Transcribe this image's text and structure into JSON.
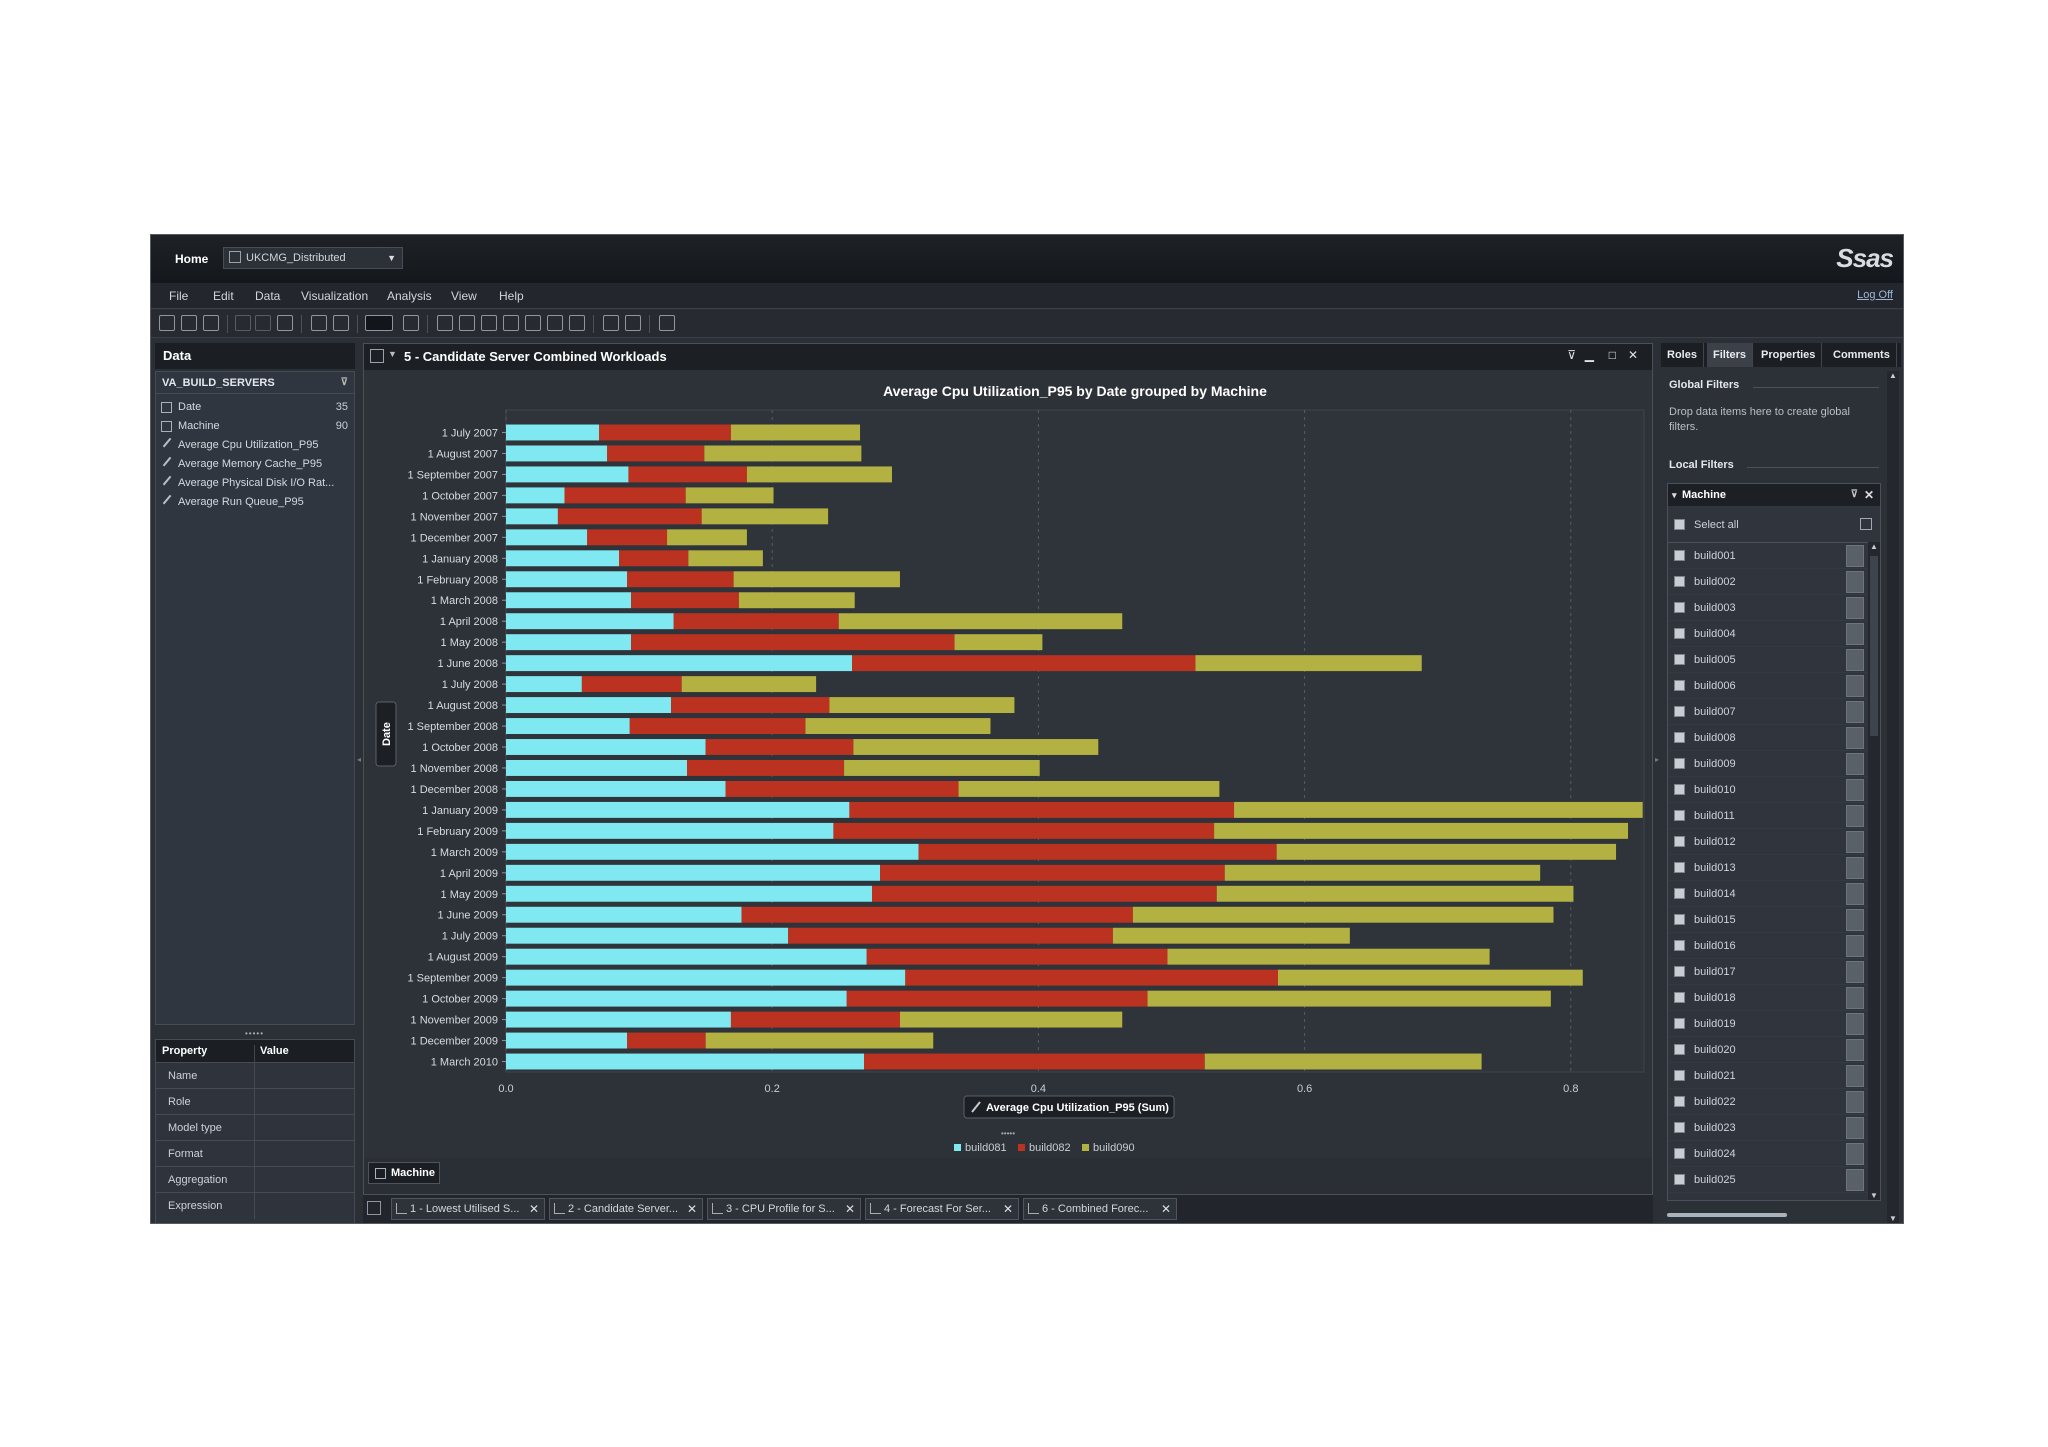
{
  "topbar": {
    "home_label": "Home",
    "report_name": "UKCMG_Distributed",
    "logo_text": "Ssas",
    "logoff_label": "Log Off"
  },
  "menu": [
    "File",
    "Edit",
    "Data",
    "Visualization",
    "Analysis",
    "View",
    "Help"
  ],
  "data_pane": {
    "title": "Data",
    "datasource": "VA_BUILD_SERVERS",
    "items": [
      {
        "label": "Date",
        "count": "35",
        "kind": "category"
      },
      {
        "label": "Machine",
        "count": "90",
        "kind": "category"
      },
      {
        "label": "Average Cpu Utilization_P95",
        "count": "",
        "kind": "measure"
      },
      {
        "label": "Average Memory Cache_P95",
        "count": "",
        "kind": "measure"
      },
      {
        "label": "Average Physical Disk I/O Rat...",
        "count": "",
        "kind": "measure"
      },
      {
        "label": "Average Run Queue_P95",
        "count": "",
        "kind": "measure"
      }
    ],
    "grip": "•••••",
    "properties": {
      "header_property": "Property",
      "header_value": "Value",
      "rows": [
        "Name",
        "Role",
        "Model type",
        "Format",
        "Aggregation",
        "Expression"
      ]
    }
  },
  "visualization": {
    "title": "5 - Candidate Server  Combined Workloads",
    "machine_tag": "Machine",
    "measure_tag": "Average Cpu Utilization_P95 (Sum)",
    "y_axis_tag": "Date"
  },
  "chart_data": {
    "type": "bar",
    "orientation": "horizontal",
    "stacked": true,
    "title": "Average Cpu Utilization_P95 by Date grouped by Machine",
    "xlabel": "Average Cpu Utilization_P95 (Sum)",
    "ylabel": "Date",
    "xlim": [
      0,
      0.855
    ],
    "xticks": [
      "0.0",
      "0.2",
      "0.4",
      "0.6",
      "0.8"
    ],
    "xtick_values": [
      0,
      0.2,
      0.4,
      0.6,
      0.8
    ],
    "grid": true,
    "legend_position": "bottom",
    "categories": [
      "1 July 2007",
      "1 August 2007",
      "1 September 2007",
      "1 October 2007",
      "1 November 2007",
      "1 December 2007",
      "1 January 2008",
      "1 February 2008",
      "1 March 2008",
      "1 April 2008",
      "1 May 2008",
      "1 June 2008",
      "1 July 2008",
      "1 August 2008",
      "1 September 2008",
      "1 October 2008",
      "1 November 2008",
      "1 December 2008",
      "1 January 2009",
      "1 February 2009",
      "1 March 2009",
      "1 April 2009",
      "1 May 2009",
      "1 June 2009",
      "1 July 2009",
      "1 August 2009",
      "1 September 2009",
      "1 October 2009",
      "1 November 2009",
      "1 December 2009",
      "1 March 2010"
    ],
    "series": [
      {
        "name": "build081",
        "color": "#7fe8f0",
        "values": [
          0.07,
          0.076,
          0.092,
          0.044,
          0.039,
          0.061,
          0.085,
          0.091,
          0.094,
          0.126,
          0.094,
          0.26,
          0.057,
          0.124,
          0.093,
          0.15,
          0.136,
          0.165,
          0.258,
          0.246,
          0.31,
          0.281,
          0.275,
          0.177,
          0.212,
          0.271,
          0.3,
          0.256,
          0.169,
          0.091,
          0.269
        ]
      },
      {
        "name": "build082",
        "color": "#bb3320",
        "values": [
          0.099,
          0.073,
          0.089,
          0.091,
          0.108,
          0.06,
          0.052,
          0.08,
          0.081,
          0.124,
          0.243,
          0.258,
          0.075,
          0.119,
          0.132,
          0.111,
          0.118,
          0.175,
          0.289,
          0.286,
          0.269,
          0.259,
          0.259,
          0.294,
          0.244,
          0.226,
          0.28,
          0.226,
          0.127,
          0.059,
          0.256
        ]
      },
      {
        "name": "build090",
        "color": "#b2b141",
        "values": [
          0.097,
          0.118,
          0.109,
          0.066,
          0.095,
          0.06,
          0.056,
          0.125,
          0.087,
          0.213,
          0.066,
          0.17,
          0.101,
          0.139,
          0.139,
          0.184,
          0.147,
          0.196,
          0.307,
          0.311,
          0.255,
          0.237,
          0.268,
          0.316,
          0.178,
          0.242,
          0.229,
          0.303,
          0.167,
          0.171,
          0.208
        ]
      }
    ]
  },
  "report_tabs": [
    "1 - Lowest Utilised S...",
    "2 - Candidate Server...",
    "3 - CPU Profile for S...",
    "4 - Forecast  For Ser...",
    "6 - Combined Forec..."
  ],
  "right_pane": {
    "tabs": [
      "Roles",
      "Filters",
      "Properties",
      "Comments"
    ],
    "active_tab": "Filters",
    "global_filters_title": "Global Filters",
    "global_filters_hint": "Drop data items here to create global filters.",
    "local_filters_title": "Local Filters",
    "filter_name": "Machine",
    "select_all": "Select all",
    "machines": [
      "build001",
      "build002",
      "build003",
      "build004",
      "build005",
      "build006",
      "build007",
      "build008",
      "build009",
      "build010",
      "build011",
      "build012",
      "build013",
      "build014",
      "build015",
      "build016",
      "build017",
      "build018",
      "build019",
      "build020",
      "build021",
      "build022",
      "build023",
      "build024",
      "build025"
    ]
  }
}
